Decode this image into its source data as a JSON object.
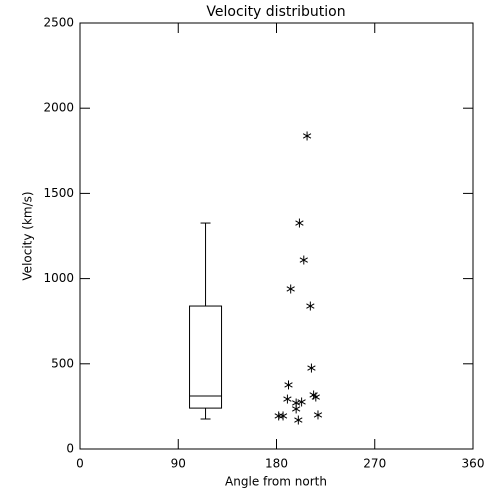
{
  "chart_data": {
    "type": "box",
    "title": "Velocity distribution",
    "xlabel": "Angle from north",
    "ylabel": "Velocity (km/s)",
    "xlim": [
      0,
      360
    ],
    "xticks": [
      0,
      90,
      180,
      270,
      360
    ],
    "ylim": [
      0,
      2500
    ],
    "yticks": [
      0,
      500,
      1000,
      1500,
      2000,
      2500
    ],
    "color": "#000000",
    "box": {
      "position": 115,
      "low": 176,
      "q1": 240,
      "median": 311,
      "q3": 839,
      "high": 1326
    },
    "scatter": {
      "type": "scatter",
      "x": [
        208,
        201,
        205,
        193,
        211,
        212,
        191,
        214,
        216,
        190,
        203,
        198,
        198,
        186,
        182,
        218,
        200
      ],
      "y": [
        1837,
        1326,
        1109,
        939,
        839,
        475,
        376,
        317,
        305,
        293,
        276,
        270,
        235,
        194,
        194,
        200,
        170
      ]
    }
  }
}
